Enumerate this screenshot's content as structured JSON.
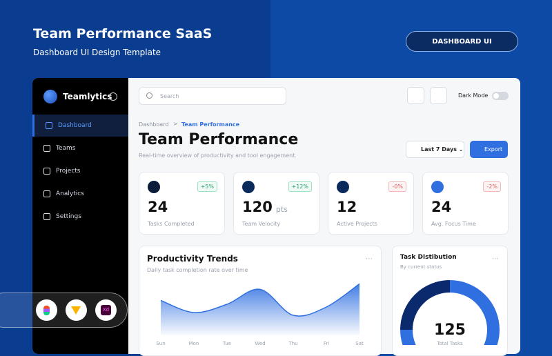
{
  "header": {
    "title": "Team Performance SaaS",
    "subtitle": "Dashboard UI Design Template",
    "badge": "DASHBOARD UI"
  },
  "app": {
    "brand": "Teamlytics",
    "nav": [
      "Dashboard",
      "Teams",
      "Projects",
      "Analytics",
      "Settings"
    ],
    "search_placeholder": "Search",
    "dark_mode": "Dark Mode",
    "breadcrumb": [
      "Dashboard",
      "Team Performance"
    ],
    "title": "Team Performance",
    "subtitle": "Real-time overview of productivity and tool engagement.",
    "range": "Last 7 Days",
    "export": "Export",
    "stats": [
      {
        "value": 24,
        "change": "+5%",
        "label": "Tasks Completed"
      },
      {
        "value": 120,
        "unit": "pts",
        "change": "+12%",
        "label": "Team Velocity"
      },
      {
        "value": 12,
        "change": "-0%",
        "label": "Active Projects"
      },
      {
        "value": 24,
        "change": "-2%",
        "label": "Avg. Focus Time"
      }
    ],
    "trends": {
      "title": "Productivity Trends",
      "subtitle": "Daily task completion rate over time",
      "categories": [
        "Sun",
        "Mon",
        "Tue",
        "Wed",
        "Thu",
        "Fri",
        "Sat"
      ],
      "values": [
        62,
        40,
        55,
        82,
        35,
        50,
        92
      ]
    },
    "distribution": {
      "title": "Task Distibution",
      "subtitle": "By current status",
      "total": 125,
      "total_label": "Total Tasks",
      "values": [
        25,
        75
      ]
    }
  }
}
